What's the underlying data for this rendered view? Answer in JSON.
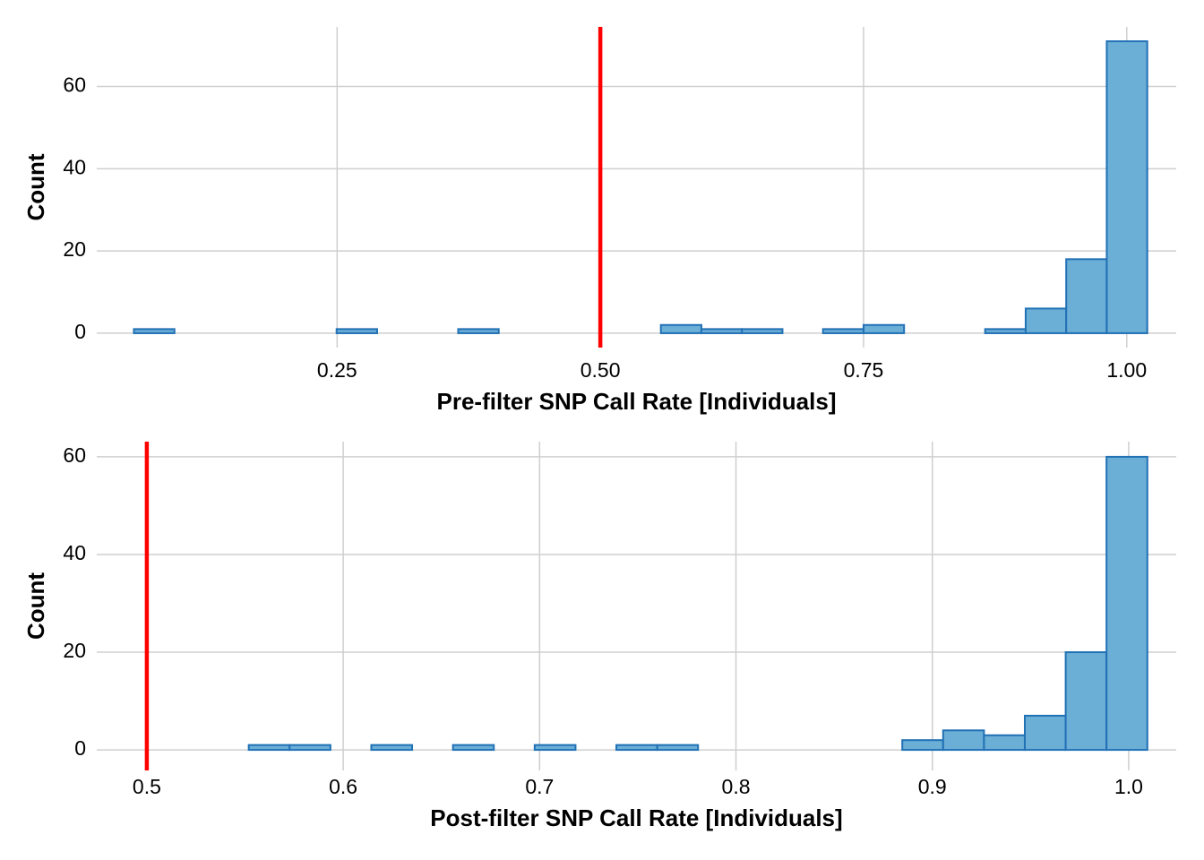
{
  "chart_data": [
    {
      "type": "histogram",
      "xlabel": "Pre-filter SNP Call Rate [Individuals]",
      "ylabel": "Count",
      "bins": [
        0.057,
        0.0955,
        0.134,
        0.1725,
        0.211,
        0.2495,
        0.288,
        0.3265,
        0.365,
        0.4035,
        0.442,
        0.4805,
        0.519,
        0.5575,
        0.596,
        0.6345,
        0.673,
        0.7115,
        0.75,
        0.7885,
        0.827,
        0.8655,
        0.904,
        0.9425,
        0.981,
        1.0195
      ],
      "values": [
        1,
        0,
        0,
        0,
        0,
        1,
        0,
        0,
        1,
        0,
        0,
        0,
        0,
        2,
        1,
        1,
        0,
        1,
        2,
        0,
        0,
        1,
        6,
        18,
        71
      ],
      "color": "#6baed6",
      "edge_color": "#2171b5",
      "xlim": [
        0.0217,
        1.047
      ],
      "xticks": [
        {
          "value": 0.25,
          "label": "0.25"
        },
        {
          "value": 0.5,
          "label": "0.50"
        },
        {
          "value": 0.75,
          "label": "0.75"
        },
        {
          "value": 1,
          "label": "1.00"
        }
      ],
      "ylim": [
        -3.5,
        74.5
      ],
      "yticks": [
        0,
        20,
        40,
        60
      ],
      "grid": true,
      "vline": 0.5,
      "vline_color": "#ff0000"
    },
    {
      "type": "histogram",
      "xlabel": "Post-filter SNP Call Rate [Individuals]",
      "ylabel": "Count",
      "bins": [
        0.4895,
        0.5103,
        0.5311,
        0.5519,
        0.5727,
        0.5935,
        0.6143,
        0.6351,
        0.6559,
        0.6767,
        0.6975,
        0.7183,
        0.7391,
        0.7599,
        0.7807,
        0.8015,
        0.8223,
        0.8431,
        0.8639,
        0.8847,
        0.9055,
        0.9263,
        0.9471,
        0.9679,
        0.9887,
        1.0095
      ],
      "values": [
        0,
        0,
        0,
        1,
        1,
        0,
        1,
        0,
        1,
        0,
        1,
        0,
        1,
        1,
        0,
        0,
        0,
        0,
        0,
        2,
        4,
        3,
        7,
        20,
        60
      ],
      "color": "#6baed6",
      "edge_color": "#2171b5",
      "xlim": [
        0.4745,
        1.0242
      ],
      "xticks": [
        0.5,
        0.6,
        0.7,
        0.8,
        0.9,
        {
          "value": 1,
          "label": "1.0"
        }
      ],
      "ylim": [
        -4.2,
        63.1
      ],
      "yticks": [
        0,
        20,
        40,
        60
      ],
      "grid": true,
      "vline": 0.5,
      "vline_color": "#ff0000"
    }
  ]
}
